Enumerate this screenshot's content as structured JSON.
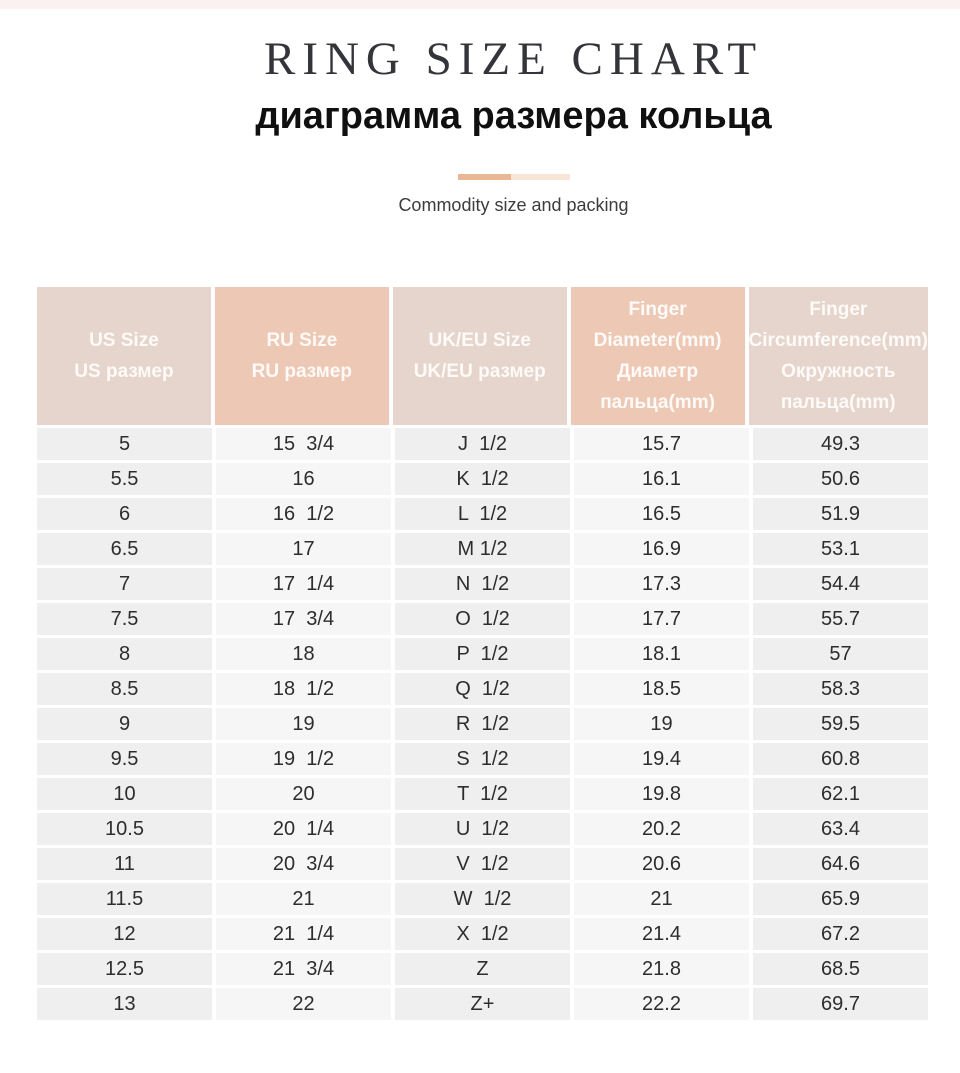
{
  "page": {
    "title": "RING SIZE CHART",
    "subtitle": "диаграмма размера кольца",
    "caption": "Commodity size and packing"
  },
  "colors": {
    "top_strip": "#fbf1f0",
    "title_text": "#34353a",
    "subtitle_text": "#101010",
    "caption_text": "#3d3d3d",
    "divider_accent": "#eab795",
    "divider_accent_light": "#f8e5d8",
    "header_cell_light": "#e6d5cc",
    "header_cell_dark": "#edc9b5",
    "header_text": "#fdfaf8",
    "body_cell_odd": "#f0eff0",
    "body_cell_even": "#f7f6f6",
    "body_text": "#2d2d2d"
  },
  "chart_data": {
    "type": "table",
    "title": "RING SIZE CHART",
    "columns": [
      {
        "lines": [
          "US Size",
          "US размер"
        ],
        "shade": "light"
      },
      {
        "lines": [
          "RU Size",
          "RU размер"
        ],
        "shade": "dark"
      },
      {
        "lines": [
          "UK/EU Size",
          "UK/EU размер"
        ],
        "shade": "light"
      },
      {
        "lines": [
          "Finger",
          "Diameter(mm)",
          "Диаметр",
          "пальца(mm)"
        ],
        "shade": "dark"
      },
      {
        "lines": [
          "Finger",
          "Circumference(mm)",
          "Окружность",
          "пальца(mm)"
        ],
        "shade": "light"
      }
    ],
    "rows": [
      [
        "5",
        "15  3/4",
        "J  1/2",
        "15.7",
        "49.3"
      ],
      [
        "5.5",
        "16",
        "K  1/2",
        "16.1",
        "50.6"
      ],
      [
        "6",
        "16  1/2",
        "L  1/2",
        "16.5",
        "51.9"
      ],
      [
        "6.5",
        "17",
        "M 1/2",
        "16.9",
        "53.1"
      ],
      [
        "7",
        "17  1/4",
        "N  1/2",
        "17.3",
        "54.4"
      ],
      [
        "7.5",
        "17  3/4",
        "O  1/2",
        "17.7",
        "55.7"
      ],
      [
        "8",
        "18",
        "P  1/2",
        "18.1",
        "57"
      ],
      [
        "8.5",
        "18  1/2",
        "Q  1/2",
        "18.5",
        "58.3"
      ],
      [
        "9",
        "19",
        "R  1/2",
        "19",
        "59.5"
      ],
      [
        "9.5",
        "19  1/2",
        "S  1/2",
        "19.4",
        "60.8"
      ],
      [
        "10",
        "20",
        "T  1/2",
        "19.8",
        "62.1"
      ],
      [
        "10.5",
        "20  1/4",
        "U  1/2",
        "20.2",
        "63.4"
      ],
      [
        "11",
        "20  3/4",
        "V  1/2",
        "20.6",
        "64.6"
      ],
      [
        "11.5",
        "21",
        "W  1/2",
        "21",
        "65.9"
      ],
      [
        "12",
        "21  1/4",
        "X  1/2",
        "21.4",
        "67.2"
      ],
      [
        "12.5",
        "21  3/4",
        "Z",
        "21.8",
        "68.5"
      ],
      [
        "13",
        "22",
        "Z+",
        "22.2",
        "69.7"
      ]
    ]
  }
}
